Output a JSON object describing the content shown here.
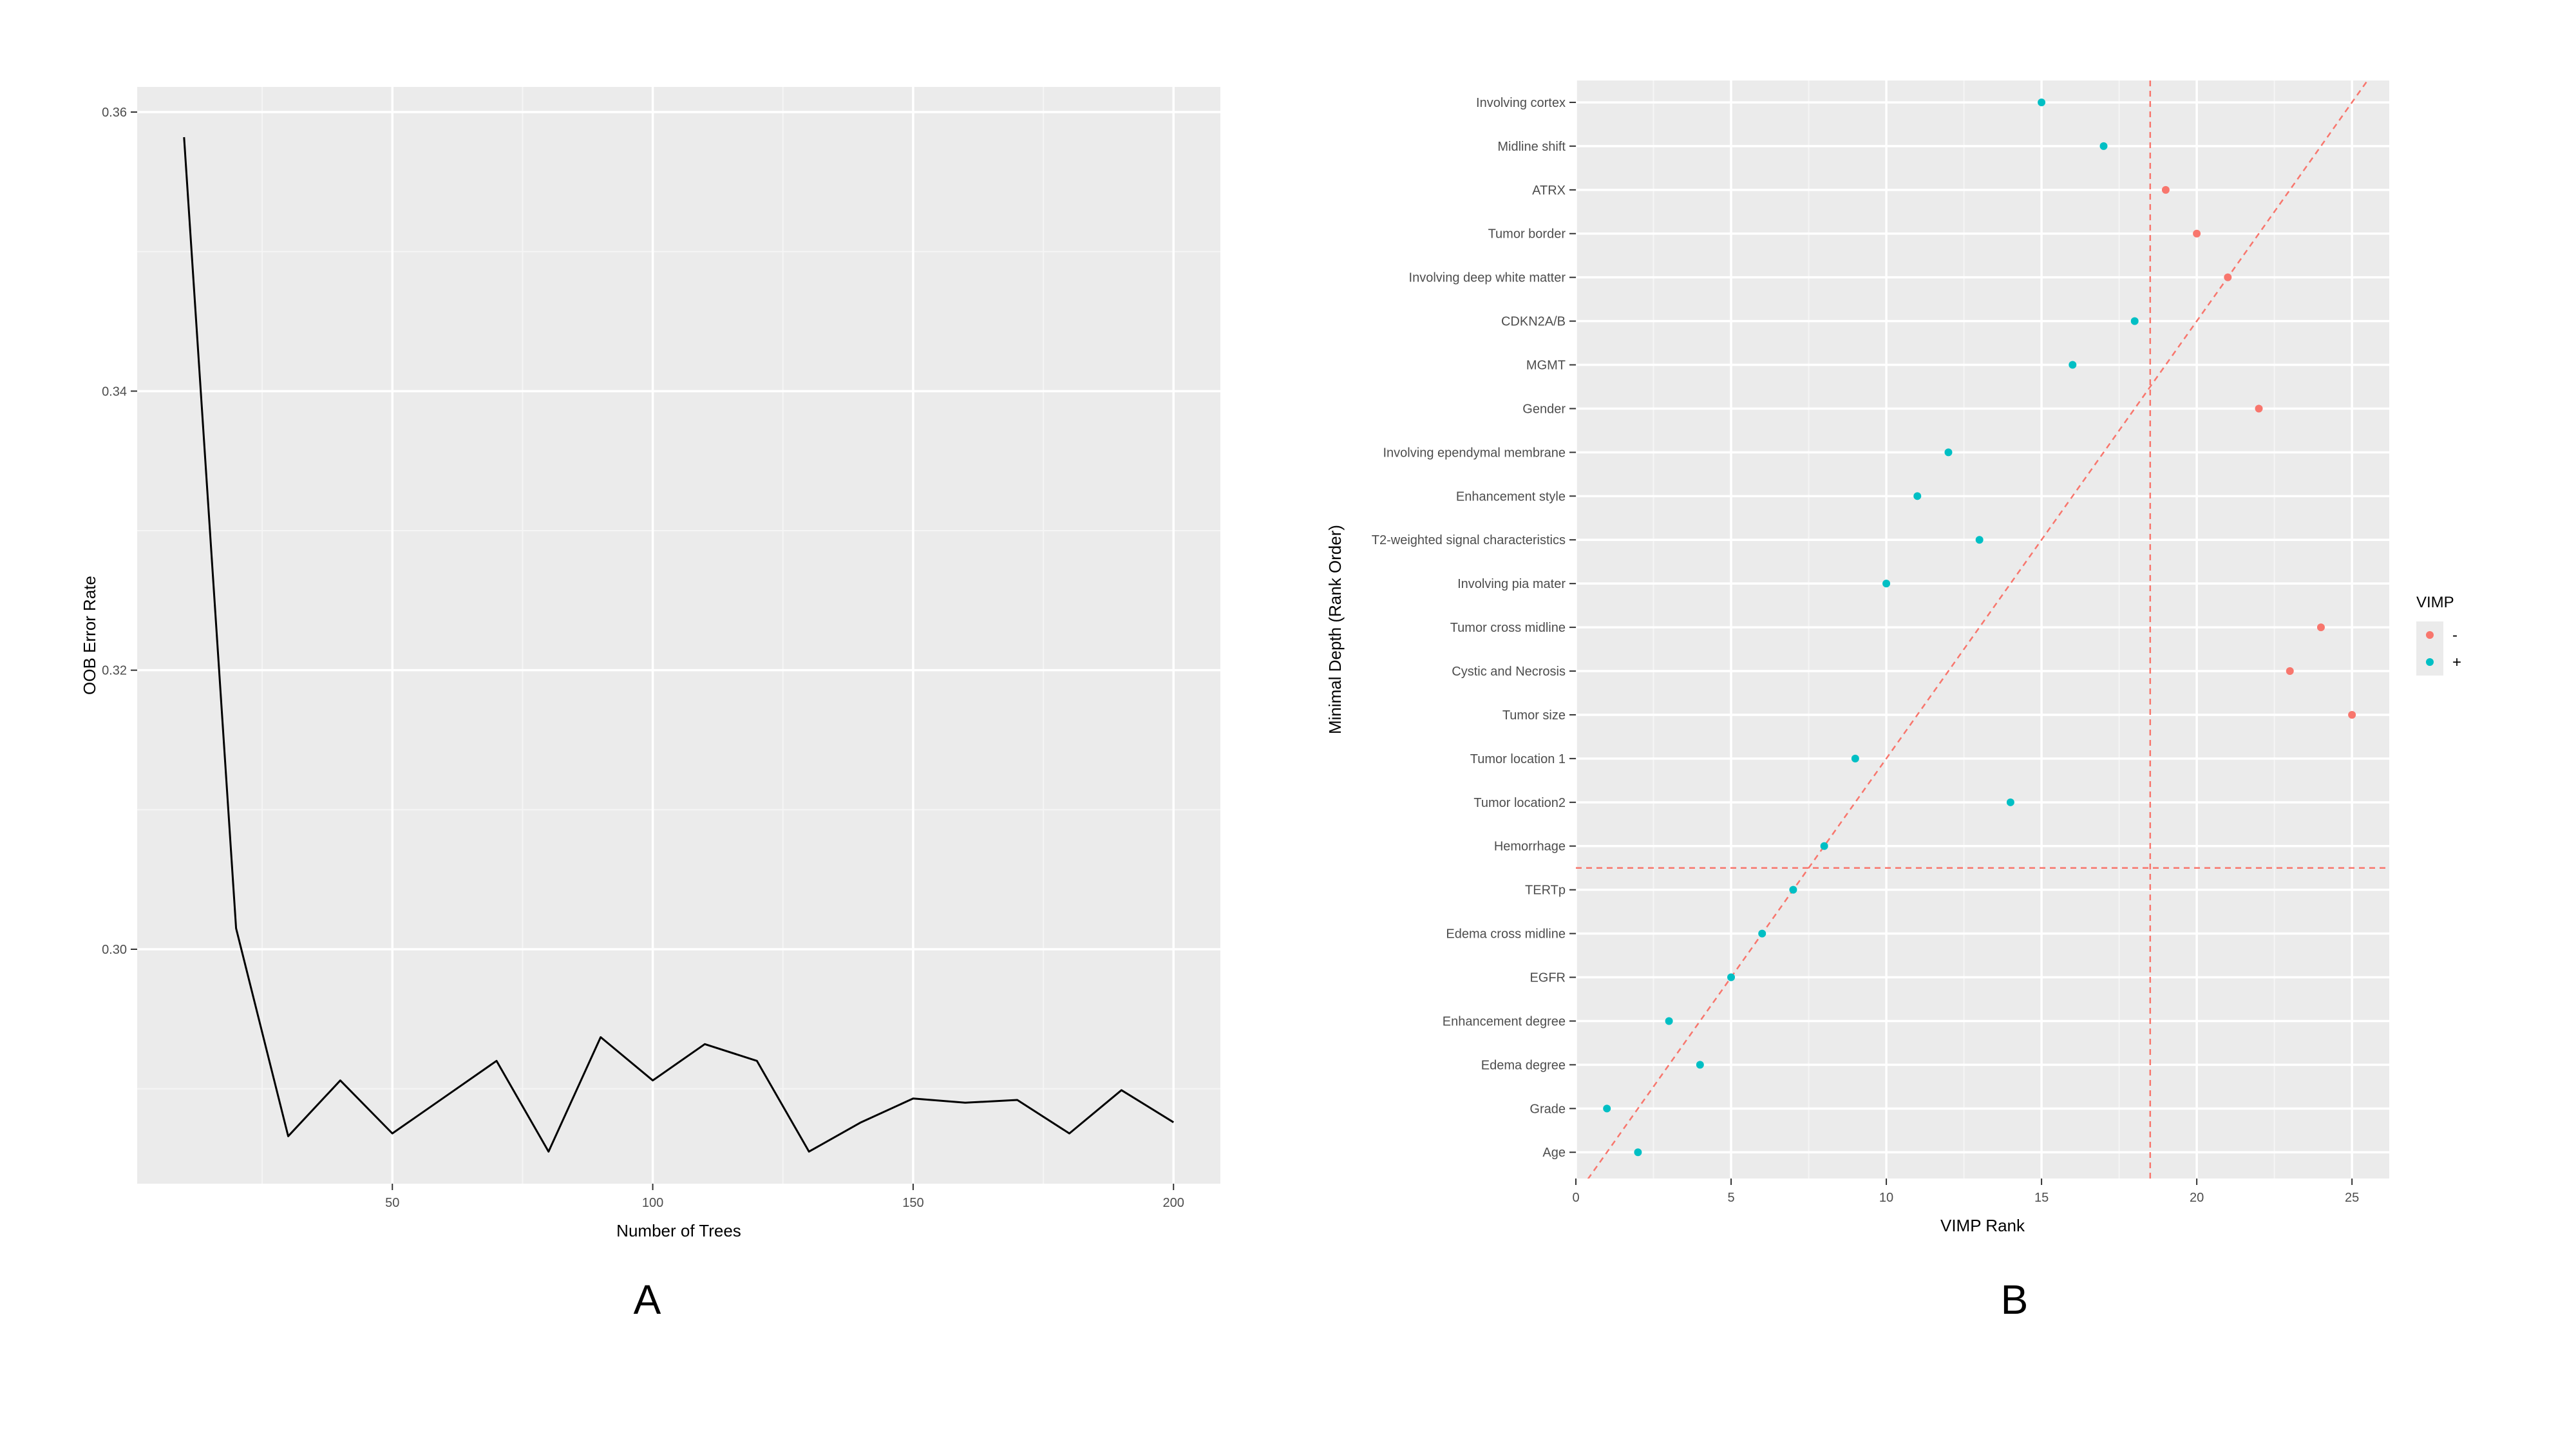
{
  "chart_data": [
    {
      "panel_label": "A",
      "type": "line",
      "xlabel": "Number of Trees",
      "ylabel": "OOB Error Rate",
      "xlim": [
        1,
        209
      ],
      "ylim": [
        0.2832,
        0.3618
      ],
      "x_ticks": [
        50,
        100,
        150,
        200
      ],
      "y_ticks": [
        0.3,
        0.32,
        0.34,
        0.36
      ],
      "y_tick_labels": [
        "0.30",
        "0.32",
        "0.34",
        "0.36"
      ],
      "grid": true,
      "color": "#000000",
      "series": [
        {
          "x": [
            10,
            20,
            30,
            40,
            50,
            60,
            70,
            80,
            90,
            100,
            110,
            120,
            130,
            140,
            150,
            160,
            170,
            180,
            190,
            200
          ],
          "values": [
            0.3582,
            0.3015,
            0.2866,
            0.2906,
            0.2868,
            0.2894,
            0.292,
            0.2855,
            0.2937,
            0.2906,
            0.2932,
            0.292,
            0.2855,
            0.2876,
            0.2893,
            0.289,
            0.2892,
            0.2868,
            0.2899,
            0.2876
          ]
        }
      ]
    },
    {
      "panel_label": "B",
      "type": "scatter",
      "xlabel": "VIMP Rank",
      "ylabel": "Minimal Depth (Rank Order)",
      "xlim": [
        0,
        26.2
      ],
      "x_ticks": [
        0,
        5,
        10,
        15,
        20,
        25
      ],
      "categories": [
        "Age",
        "Grade",
        "Edema degree",
        "Enhancement degree",
        "EGFR",
        "Edema cross midline",
        "TERTp",
        "Hemorrhage",
        "Tumor location2",
        "Tumor location 1",
        "Tumor size",
        "Cystic and Necrosis",
        "Tumor cross midline",
        "Involving pia mater",
        "T2-weighted signal characteristics",
        "Enhancement style",
        "Involving ependymal membrane",
        "Gender",
        "MGMT",
        "CDKN2A/B",
        "Involving deep white matter",
        "Tumor border",
        "ATRX",
        "Midline shift",
        "Involving cortex"
      ],
      "points": [
        {
          "label": "Age",
          "x": 2,
          "y": 1,
          "group": "+"
        },
        {
          "label": "Grade",
          "x": 1,
          "y": 2,
          "group": "+"
        },
        {
          "label": "Edema degree",
          "x": 4,
          "y": 3,
          "group": "+"
        },
        {
          "label": "Enhancement degree",
          "x": 3,
          "y": 4,
          "group": "+"
        },
        {
          "label": "EGFR",
          "x": 5,
          "y": 5,
          "group": "+"
        },
        {
          "label": "Edema cross midline",
          "x": 6,
          "y": 6,
          "group": "+"
        },
        {
          "label": "TERTp",
          "x": 7,
          "y": 7,
          "group": "+"
        },
        {
          "label": "Hemorrhage",
          "x": 8,
          "y": 8,
          "group": "+"
        },
        {
          "label": "Tumor location2",
          "x": 14,
          "y": 9,
          "group": "+"
        },
        {
          "label": "Tumor location 1",
          "x": 9,
          "y": 10,
          "group": "+"
        },
        {
          "label": "Tumor size",
          "x": 25,
          "y": 11,
          "group": "-"
        },
        {
          "label": "Cystic and Necrosis",
          "x": 23,
          "y": 12,
          "group": "-"
        },
        {
          "label": "Tumor cross midline",
          "x": 24,
          "y": 13,
          "group": "-"
        },
        {
          "label": "Involving pia mater",
          "x": 10,
          "y": 14,
          "group": "+"
        },
        {
          "label": "T2-weighted signal characteristics",
          "x": 13,
          "y": 15,
          "group": "+"
        },
        {
          "label": "Enhancement style",
          "x": 11,
          "y": 16,
          "group": "+"
        },
        {
          "label": "Involving ependymal membrane",
          "x": 12,
          "y": 17,
          "group": "+"
        },
        {
          "label": "Gender",
          "x": 22,
          "y": 18,
          "group": "-"
        },
        {
          "label": "MGMT",
          "x": 16,
          "y": 19,
          "group": "+"
        },
        {
          "label": "CDKN2A/B",
          "x": 18,
          "y": 20,
          "group": "+"
        },
        {
          "label": "Involving deep white matter",
          "x": 21,
          "y": 21,
          "group": "-"
        },
        {
          "label": "Tumor border",
          "x": 20,
          "y": 22,
          "group": "-"
        },
        {
          "label": "ATRX",
          "x": 19,
          "y": 23,
          "group": "-"
        },
        {
          "label": "Midline shift",
          "x": 17,
          "y": 24,
          "group": "+"
        },
        {
          "label": "Involving cortex",
          "x": 15,
          "y": 25,
          "group": "+"
        }
      ],
      "reference_lines": {
        "vertical_x": 18.5,
        "horizontal_y": 7.5,
        "diagonal": {
          "slope": 1,
          "intercept": 0
        }
      },
      "ref_color": "#f8766d",
      "legend": {
        "title": "VIMP",
        "position": "right",
        "items": [
          {
            "label": "-",
            "color": "#f8766d"
          },
          {
            "label": "+",
            "color": "#00bfc4"
          }
        ]
      },
      "grid": true
    }
  ]
}
